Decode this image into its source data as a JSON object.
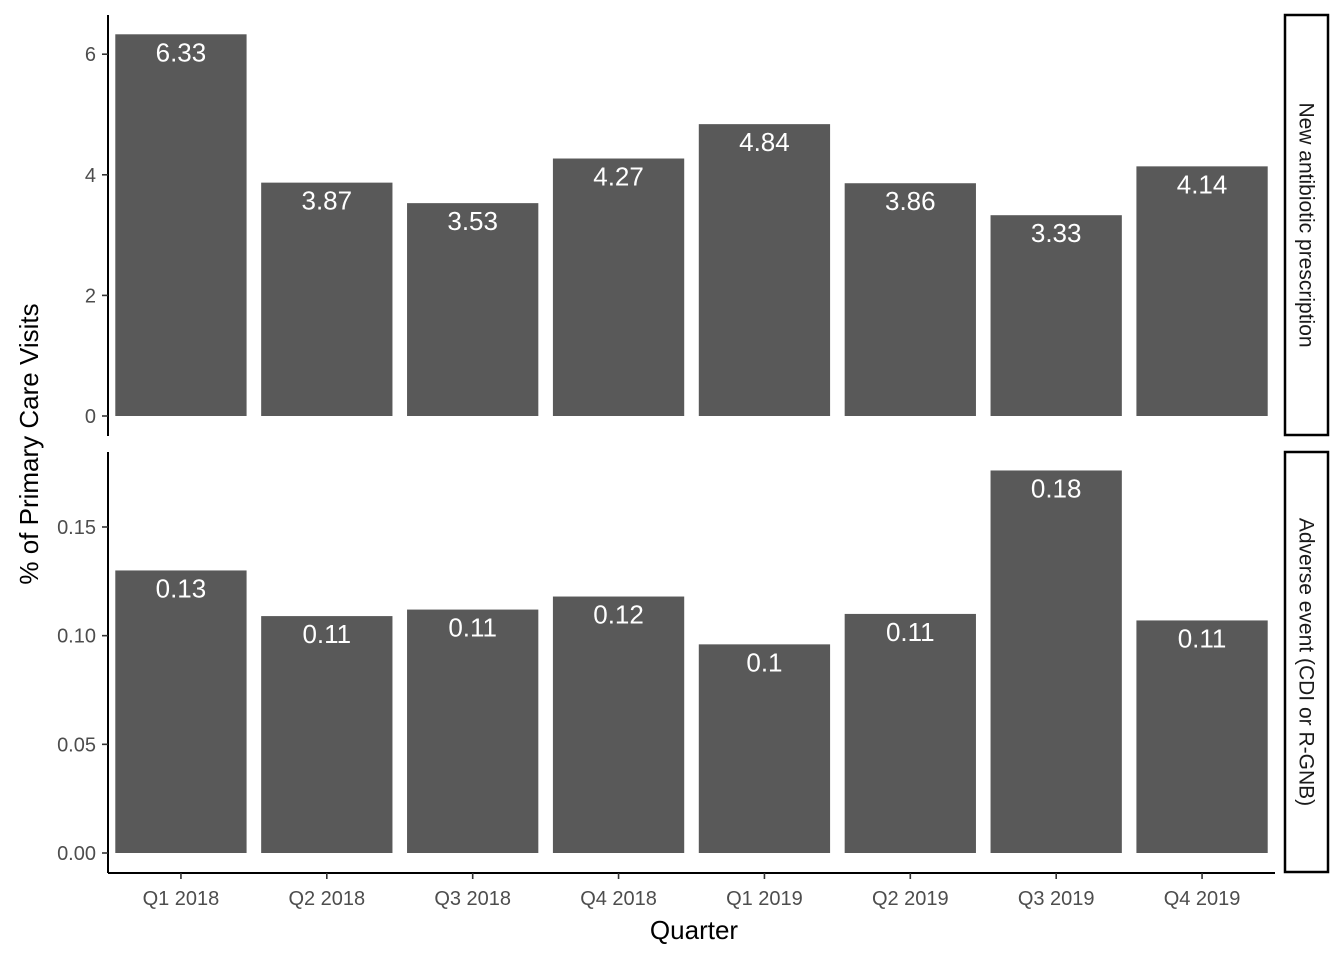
{
  "chart_data": {
    "type": "bar",
    "xlabel": "Quarter",
    "ylabel": "% of Primary Care Visits",
    "categories": [
      "Q1 2018",
      "Q2 2018",
      "Q3 2018",
      "Q4 2018",
      "Q1 2019",
      "Q2 2019",
      "Q3 2019",
      "Q4 2019"
    ],
    "bar_color": "#595959",
    "grid": false,
    "panels": [
      {
        "strip": "New antibiotic prescription",
        "values": [
          6.33,
          3.87,
          3.53,
          4.27,
          4.84,
          3.86,
          3.33,
          4.14
        ],
        "labels": [
          "6.33",
          "3.87",
          "3.53",
          "4.27",
          "4.84",
          "3.86",
          "3.33",
          "4.14"
        ],
        "ylim": [
          0,
          6.65
        ],
        "yticks": [
          0,
          2,
          4,
          6
        ],
        "ytick_labels": [
          "0",
          "2",
          "4",
          "6"
        ]
      },
      {
        "strip": "Adverse event (CDI or R-GNB)",
        "values": [
          0.13,
          0.109,
          0.112,
          0.118,
          0.096,
          0.11,
          0.176,
          0.107
        ],
        "labels": [
          "0.13",
          "0.11",
          "0.11",
          "0.12",
          "0.1",
          "0.11",
          "0.18",
          "0.11"
        ],
        "ylim": [
          0,
          0.1845
        ],
        "yticks": [
          0,
          0.05,
          0.1,
          0.15
        ],
        "ytick_labels": [
          "0.00",
          "0.05",
          "0.10",
          "0.15"
        ]
      }
    ]
  }
}
